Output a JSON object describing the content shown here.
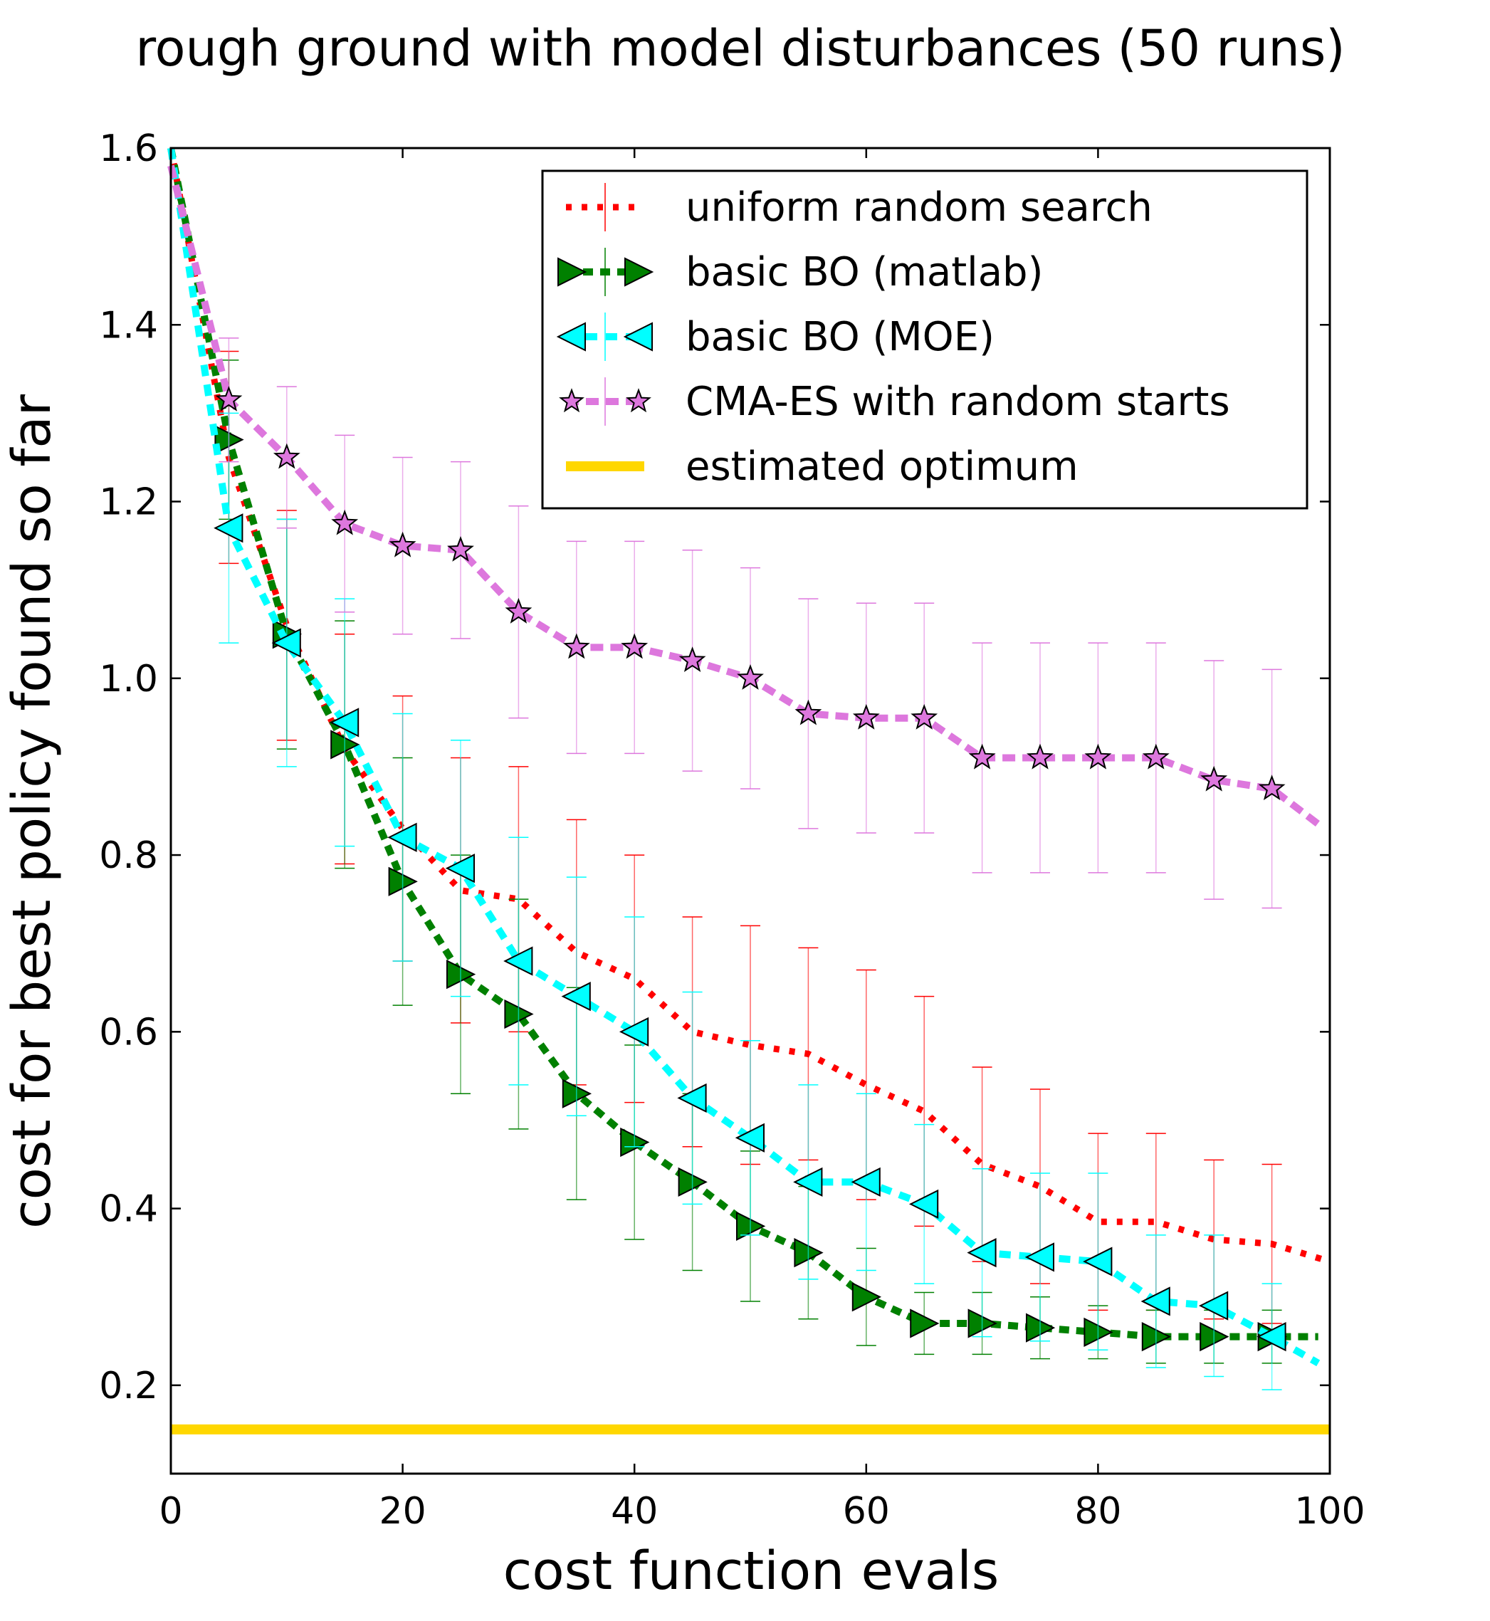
{
  "chart_data": {
    "type": "line",
    "title": "rough ground with model disturbances (50 runs)",
    "xlabel": "cost function evals",
    "ylabel": "cost for best policy found so far",
    "xlim": [
      0,
      100
    ],
    "ylim": [
      0.1,
      1.6
    ],
    "xticks": [
      "0",
      "20",
      "40",
      "60",
      "80",
      "100"
    ],
    "yticks": [
      "0.2",
      "0.4",
      "0.6",
      "0.8",
      "1.0",
      "1.2",
      "1.4",
      "1.6"
    ],
    "grid": false,
    "legend_position": "top-right",
    "series": [
      {
        "name": "uniform random search",
        "color": "#ff0000",
        "marker": "none",
        "x": [
          0,
          5,
          10,
          15,
          20,
          25,
          30,
          35,
          40,
          45,
          50,
          55,
          60,
          65,
          70,
          75,
          80,
          85,
          90,
          95,
          100
        ],
        "y": [
          1.6,
          1.25,
          1.06,
          0.92,
          0.83,
          0.76,
          0.75,
          0.69,
          0.66,
          0.6,
          0.585,
          0.575,
          0.54,
          0.51,
          0.45,
          0.425,
          0.385,
          0.385,
          0.365,
          0.36,
          0.34
        ],
        "err": [
          0,
          0.12,
          0.13,
          0.13,
          0.15,
          0.15,
          0.15,
          0.15,
          0.14,
          0.13,
          0.135,
          0.12,
          0.13,
          0.13,
          0.11,
          0.11,
          0.1,
          0.1,
          0.09,
          0.09,
          0
        ]
      },
      {
        "name": "basic BO (matlab)",
        "color": "#008000",
        "marker": "triangle-right",
        "x": [
          0,
          5,
          10,
          15,
          20,
          25,
          30,
          35,
          40,
          45,
          50,
          55,
          60,
          65,
          70,
          75,
          80,
          85,
          90,
          95,
          99
        ],
        "y": [
          1.6,
          1.27,
          1.05,
          0.925,
          0.77,
          0.665,
          0.62,
          0.53,
          0.475,
          0.43,
          0.38,
          0.35,
          0.3,
          0.27,
          0.27,
          0.265,
          0.26,
          0.255,
          0.255,
          0.255,
          0.255
        ],
        "err": [
          0,
          0.09,
          0.13,
          0.14,
          0.14,
          0.135,
          0.13,
          0.12,
          0.11,
          0.1,
          0.085,
          0.075,
          0.055,
          0.035,
          0.035,
          0.035,
          0.03,
          0.03,
          0.03,
          0.03,
          0
        ]
      },
      {
        "name": "basic BO (MOE)",
        "color": "#00ffff",
        "marker": "triangle-left",
        "x": [
          0,
          5,
          10,
          15,
          20,
          25,
          30,
          35,
          40,
          45,
          50,
          55,
          60,
          65,
          70,
          75,
          80,
          85,
          90,
          95,
          99
        ],
        "y": [
          1.6,
          1.17,
          1.04,
          0.95,
          0.82,
          0.785,
          0.68,
          0.64,
          0.6,
          0.525,
          0.48,
          0.43,
          0.43,
          0.405,
          0.35,
          0.345,
          0.34,
          0.295,
          0.29,
          0.255,
          0.225
        ],
        "err": [
          0,
          0.13,
          0.14,
          0.14,
          0.14,
          0.145,
          0.14,
          0.135,
          0.13,
          0.12,
          0.11,
          0.11,
          0.1,
          0.09,
          0.095,
          0.095,
          0.1,
          0.075,
          0.08,
          0.06,
          0
        ]
      },
      {
        "name": "CMA-ES with random starts",
        "color": "#dd77dd",
        "marker": "star",
        "x": [
          0,
          5,
          10,
          15,
          20,
          25,
          30,
          35,
          40,
          45,
          50,
          55,
          60,
          65,
          70,
          75,
          80,
          85,
          90,
          95,
          99
        ],
        "y": [
          1.58,
          1.315,
          1.25,
          1.175,
          1.15,
          1.145,
          1.075,
          1.035,
          1.035,
          1.02,
          1.0,
          0.96,
          0.955,
          0.955,
          0.91,
          0.91,
          0.91,
          0.91,
          0.885,
          0.875,
          0.835
        ],
        "err": [
          0,
          0.07,
          0.08,
          0.1,
          0.1,
          0.1,
          0.12,
          0.12,
          0.12,
          0.125,
          0.125,
          0.13,
          0.13,
          0.13,
          0.13,
          0.13,
          0.13,
          0.13,
          0.135,
          0.135,
          0
        ]
      },
      {
        "name": "estimated optimum",
        "color": "#ffd700",
        "marker": "none",
        "x": [
          0,
          100
        ],
        "y": [
          0.15,
          0.15
        ]
      }
    ]
  }
}
